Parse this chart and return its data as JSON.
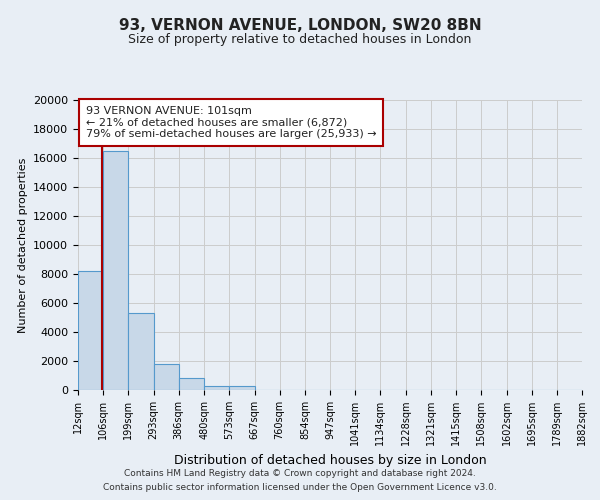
{
  "title": "93, VERNON AVENUE, LONDON, SW20 8BN",
  "subtitle": "Size of property relative to detached houses in London",
  "xlabel": "Distribution of detached houses by size in London",
  "ylabel": "Number of detached properties",
  "footer_line1": "Contains HM Land Registry data © Crown copyright and database right 2024.",
  "footer_line2": "Contains public sector information licensed under the Open Government Licence v3.0.",
  "annotation_title": "93 VERNON AVENUE: 101sqm",
  "annotation_line1": "← 21% of detached houses are smaller (6,872)",
  "annotation_line2": "79% of semi-detached houses are larger (25,933) →",
  "property_size": 101,
  "bar_edges": [
    12,
    106,
    199,
    293,
    386,
    480,
    573,
    667,
    760,
    854,
    947,
    1041,
    1134,
    1228,
    1321,
    1415,
    1508,
    1602,
    1695,
    1789,
    1882
  ],
  "bar_heights": [
    8200,
    16500,
    5300,
    1800,
    800,
    300,
    300,
    0,
    0,
    0,
    0,
    0,
    0,
    0,
    0,
    0,
    0,
    0,
    0,
    0
  ],
  "bar_color": "#c8d8e8",
  "bar_edge_color": "#5599cc",
  "vline_color": "#aa0000",
  "annotation_box_color": "#ffffff",
  "annotation_box_edge": "#aa0000",
  "grid_color": "#cccccc",
  "bg_color": "#e8eef5",
  "text_color": "#222222",
  "ylim": [
    0,
    20000
  ],
  "yticks": [
    0,
    2000,
    4000,
    6000,
    8000,
    10000,
    12000,
    14000,
    16000,
    18000,
    20000
  ]
}
